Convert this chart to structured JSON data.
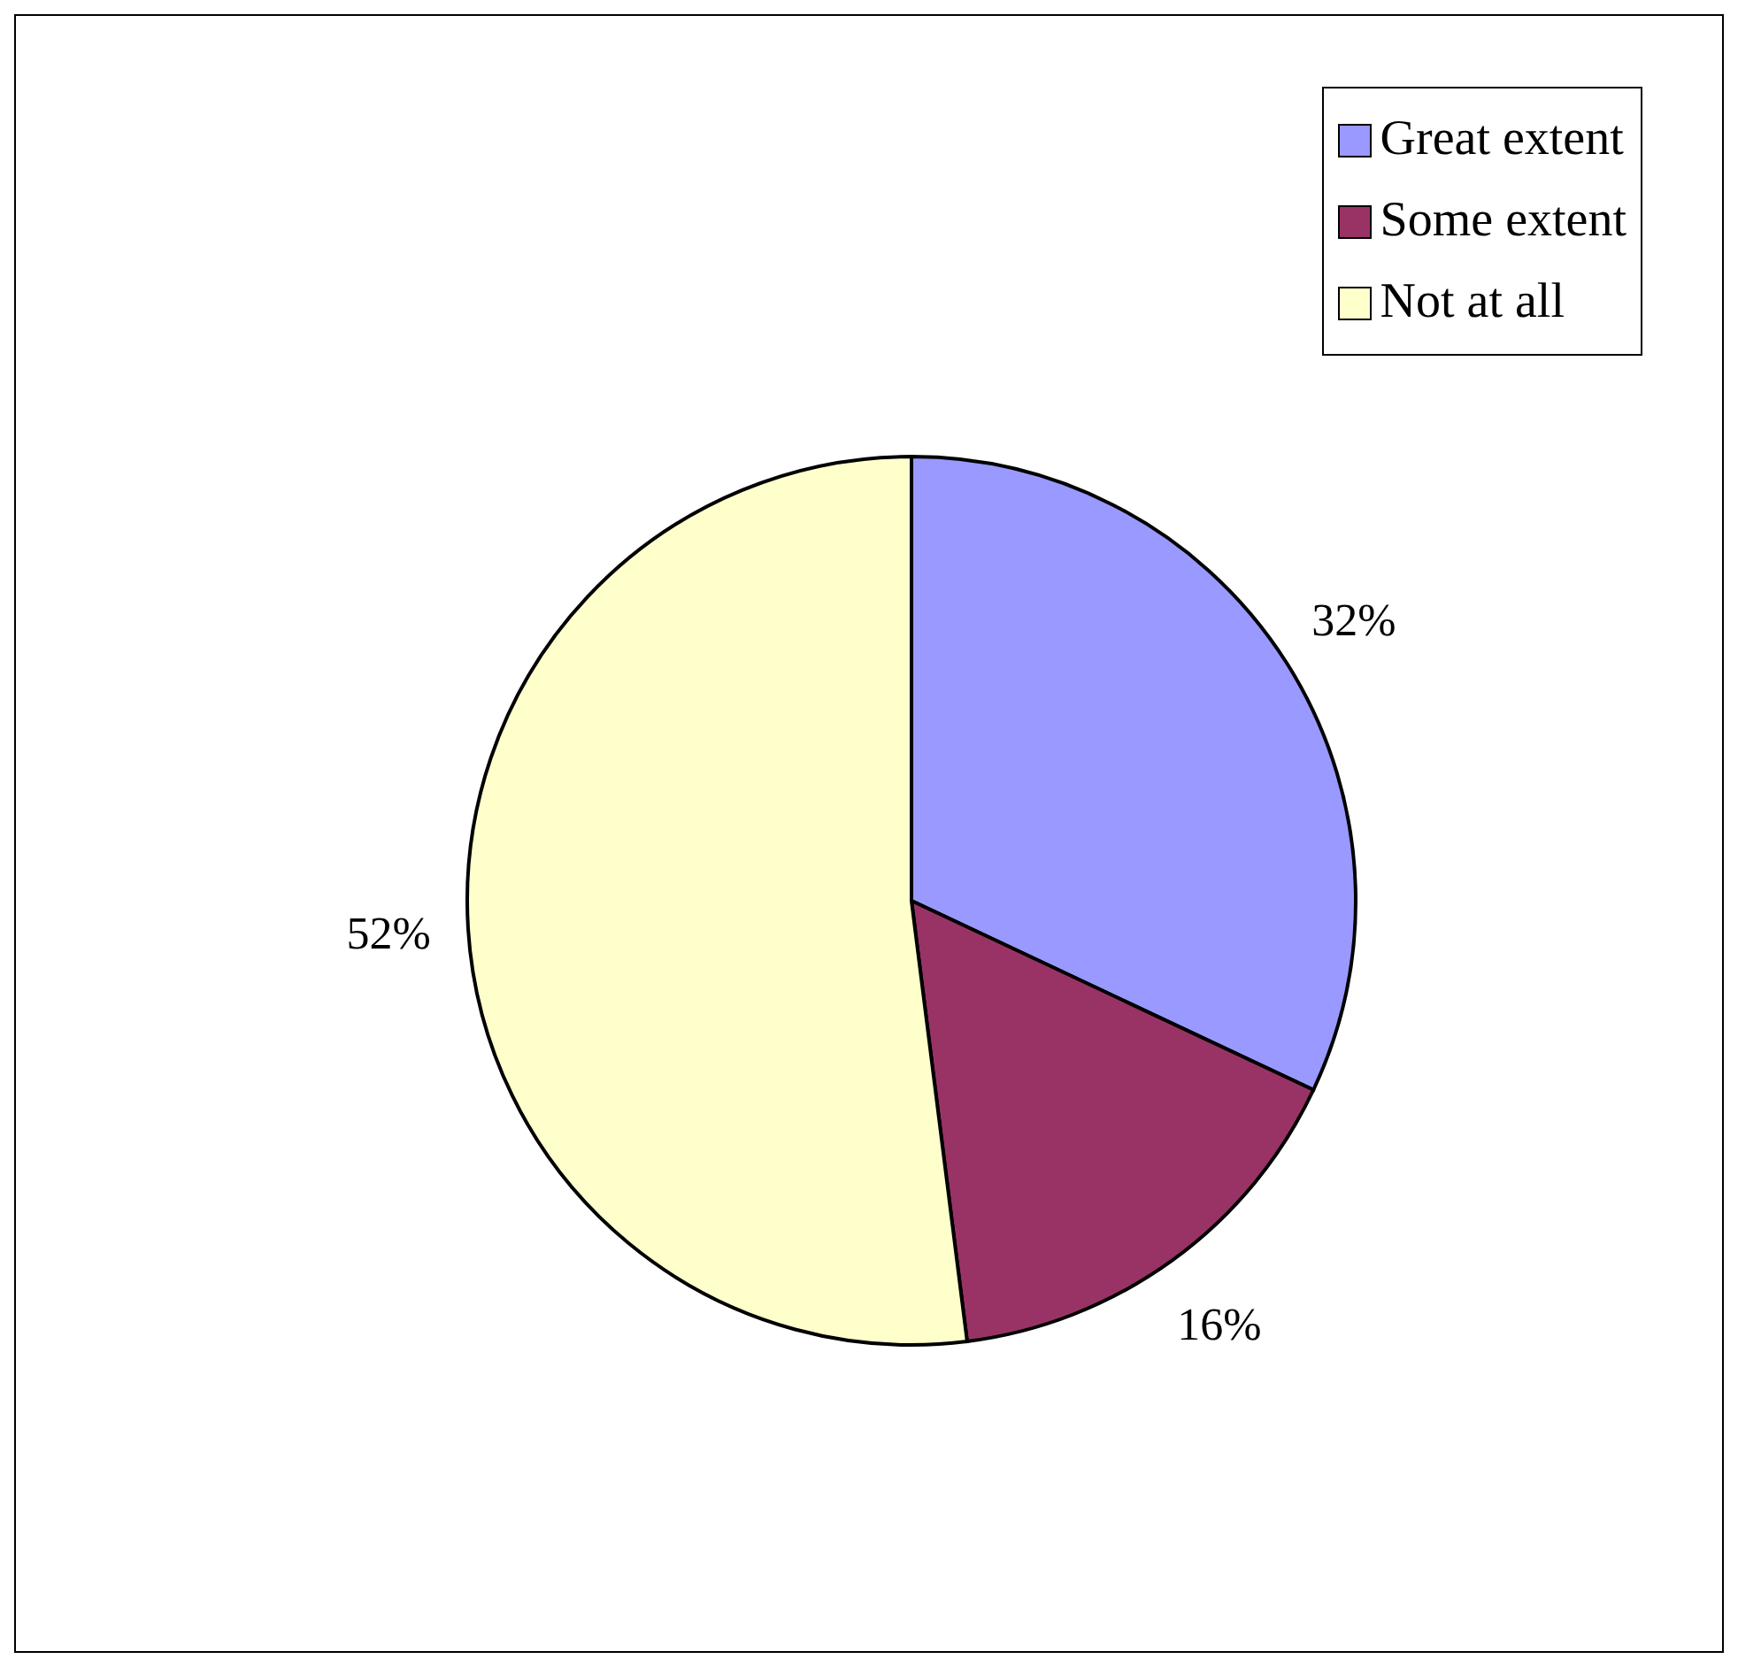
{
  "chart_data": {
    "type": "pie",
    "categories": [
      "Great extent",
      "Some extent",
      "Not at all"
    ],
    "values": [
      32,
      16,
      52
    ],
    "colors": [
      "#9999ff",
      "#993366",
      "#ffffcc"
    ],
    "value_labels": [
      "32%",
      "16%",
      "52%"
    ],
    "legend": "top right"
  }
}
